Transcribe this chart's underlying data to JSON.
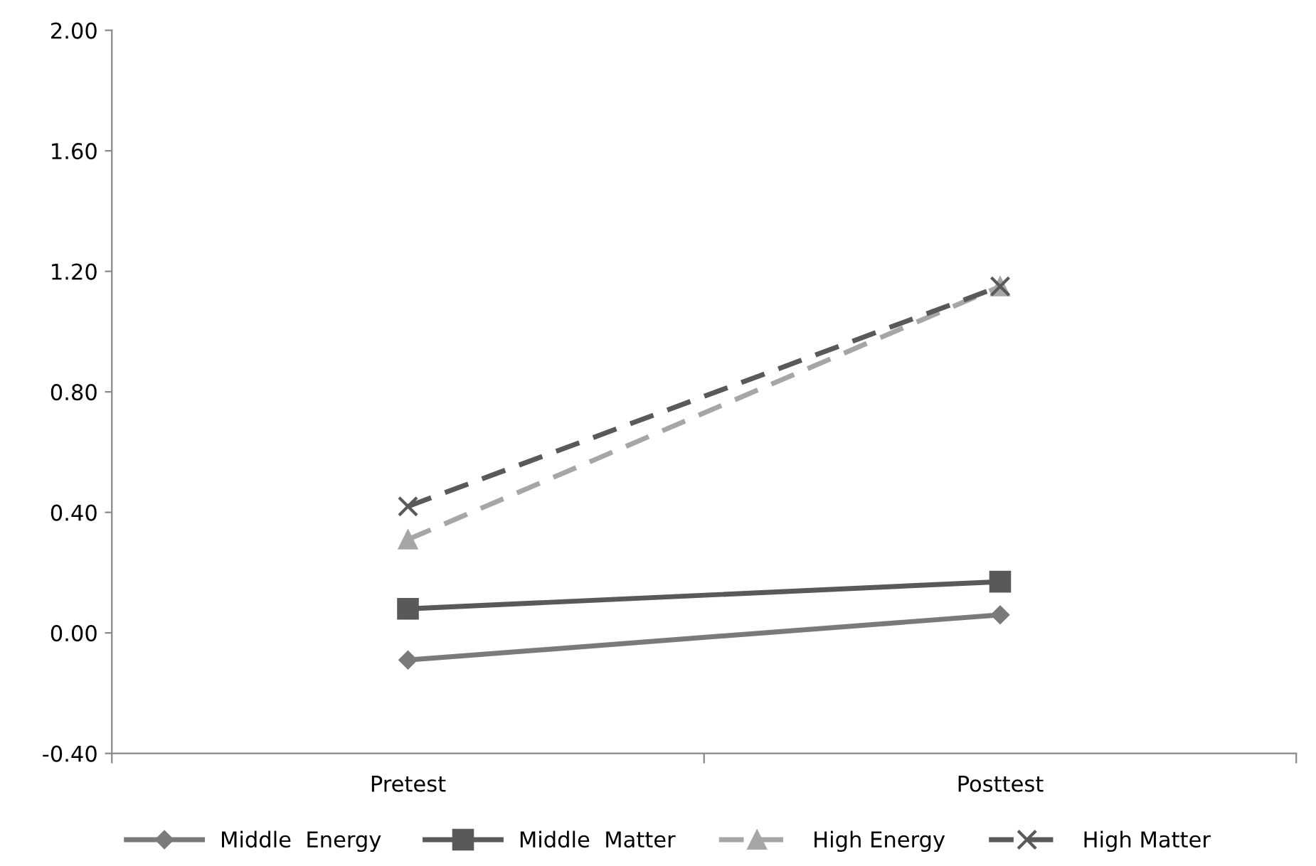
{
  "chart_data": {
    "type": "line",
    "categories": [
      "Pretest",
      "Posttest"
    ],
    "series": [
      {
        "name": "Middle  Energy",
        "color": "#7a7a7a",
        "values": [
          -0.09,
          0.06
        ],
        "marker": "diamond",
        "line_style": "solid"
      },
      {
        "name": "Middle  Matter",
        "color": "#595959",
        "values": [
          0.08,
          0.17
        ],
        "marker": "square",
        "line_style": "solid"
      },
      {
        "name": "High Energy",
        "color": "#a6a6a6",
        "values": [
          0.31,
          1.15
        ],
        "marker": "triangle",
        "line_style": "dashed"
      },
      {
        "name": "High Matter",
        "color": "#595959",
        "values": [
          0.42,
          1.15
        ],
        "marker": "cross",
        "line_style": "dashed"
      }
    ],
    "ylim": [
      -0.4,
      2.0
    ],
    "yticks": [
      {
        "value": -0.4,
        "label": "-0.40"
      },
      {
        "value": 0.0,
        "label": "0.00"
      },
      {
        "value": 0.4,
        "label": "0.40"
      },
      {
        "value": 0.8,
        "label": "0.80"
      },
      {
        "value": 1.2,
        "label": "1.20"
      },
      {
        "value": 1.6,
        "label": "1.60"
      },
      {
        "value": 2.0,
        "label": "2.00"
      }
    ],
    "grid": false,
    "legend": "bottom"
  }
}
